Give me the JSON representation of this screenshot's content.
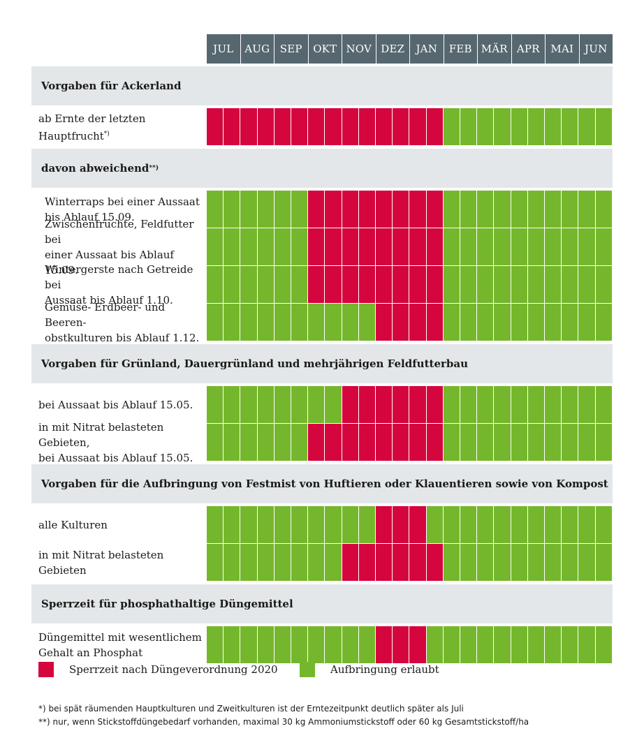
{
  "chart_data": {
    "type": "table",
    "months": [
      "JUL",
      "AUG",
      "SEP",
      "OKT",
      "NOV",
      "DEZ",
      "JAN",
      "FEB",
      "MÄR",
      "APR",
      "MAI",
      "JUN"
    ],
    "cells_per_month": 2,
    "colors": {
      "sperrzeit": "#d5053e",
      "erlaubt": "#75b72c",
      "header": "#566770",
      "section": "#e3e7e9"
    },
    "sections": [
      {
        "title": "Vorgaben für Ackerland",
        "rows": [
          {
            "label": "ab Ernte der letzten\nHauptfrucht",
            "sup": "*)",
            "indent": false,
            "blocked": [
              0,
              1,
              2,
              3,
              4,
              5,
              6,
              7,
              8,
              9,
              10,
              11,
              12,
              13
            ]
          }
        ]
      },
      {
        "title": "davon abweichend",
        "title_sup": "**)",
        "rows": [
          {
            "label": "Winterraps bei einer Aussaat\nbis Ablauf 15.09.",
            "indent": true,
            "blocked": [
              6,
              7,
              8,
              9,
              10,
              11,
              12,
              13
            ]
          },
          {
            "label": "Zwischenfrüchte, Feldfutter bei\neiner Aussaat bis Ablauf 15.09.",
            "indent": true,
            "blocked": [
              6,
              7,
              8,
              9,
              10,
              11,
              12,
              13
            ]
          },
          {
            "label": "Wintergerste nach Getreide bei\nAussaat bis Ablauf 1.10.",
            "indent": true,
            "blocked": [
              6,
              7,
              8,
              9,
              10,
              11,
              12,
              13
            ]
          },
          {
            "label": "Gemüse- Erdbeer- und Beeren-\nobstkulturen bis Ablauf 1.12.",
            "indent": true,
            "blocked": [
              10,
              11,
              12,
              13
            ]
          }
        ]
      },
      {
        "title": "Vorgaben für Grünland, Dauergrünland und mehrjährigen Feldfutterbau",
        "rows": [
          {
            "label": "bei Aussaat bis Ablauf 15.05.",
            "indent": false,
            "blocked": [
              8,
              9,
              10,
              11,
              12,
              13
            ]
          },
          {
            "label": "in mit Nitrat belasteten Gebieten,\nbei Aussaat bis Ablauf 15.05.",
            "indent": false,
            "blocked": [
              6,
              7,
              8,
              9,
              10,
              11,
              12,
              13
            ]
          }
        ]
      },
      {
        "title": "Vorgaben für die Aufbringung von Festmist von Huftieren oder Klauentieren sowie von Kompost",
        "rows": [
          {
            "label": "alle Kulturen",
            "indent": false,
            "blocked": [
              10,
              11,
              12
            ]
          },
          {
            "label": "in mit Nitrat belasteten Gebieten",
            "indent": false,
            "blocked": [
              8,
              9,
              10,
              11,
              12,
              13
            ]
          }
        ]
      },
      {
        "title": "Sperrzeit für phosphathaltige Düngemittel",
        "rows": [
          {
            "label": "Düngemittel mit wesentlichem\nGehalt an Phosphat",
            "indent": false,
            "blocked": [
              10,
              11,
              12
            ]
          }
        ]
      }
    ],
    "legend": [
      {
        "label": "Sperrzeit nach Düngeverordnung 2020",
        "color": "#d5053e"
      },
      {
        "label": "Aufbringung erlaubt",
        "color": "#75b72c"
      }
    ]
  },
  "footnotes": [
    "*) bei spät räumenden Hauptkulturen und Zweitkulturen ist der Erntezeitpunkt deutlich später als Juli",
    "**) nur, wenn Stickstoffdüngebedarf vorhanden, maximal 30 kg Ammoniumstickstoff oder 60 kg Gesamtstickstoff/ha"
  ]
}
